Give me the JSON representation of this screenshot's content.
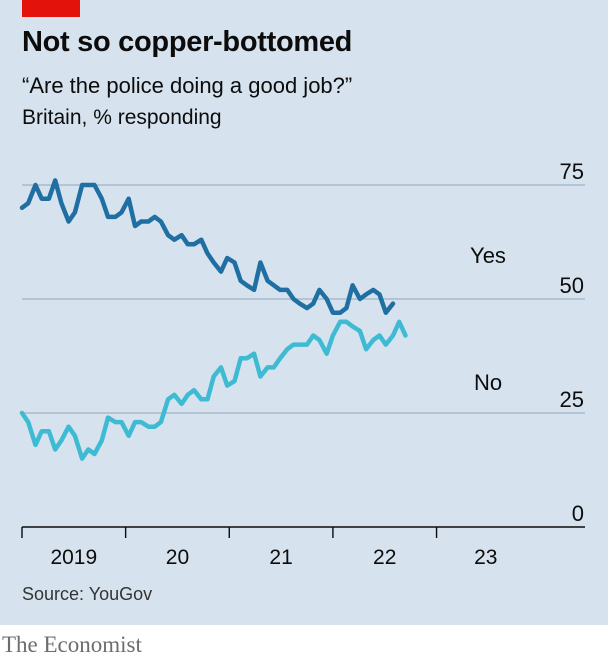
{
  "header": {
    "title": "Not so copper-bottomed",
    "subtitle": "“Are the police doing a good job?”",
    "unit": "Britain, % responding"
  },
  "footer": {
    "source": "Source: YouGov",
    "brand": "The Economist"
  },
  "colors": {
    "background": "#d6e3ee",
    "accent": "#e3120b",
    "yes": "#1f6fa3",
    "no": "#3ebbd3",
    "grid": "#9eb3c4"
  },
  "chart_data": {
    "type": "line",
    "title": "Not so copper-bottomed",
    "subtitle": "“Are the police doing a good job?”",
    "ylabel": "Britain, % responding",
    "ylim": [
      0,
      75
    ],
    "yticks": [
      0,
      25,
      50,
      75
    ],
    "xlim": [
      2019.0,
      2023.95
    ],
    "xtick_labels": [
      "2019",
      "20",
      "21",
      "22",
      "23"
    ],
    "x": [
      2019.0,
      2019.06,
      2019.13,
      2019.19,
      2019.26,
      2019.32,
      2019.38,
      2019.45,
      2019.51,
      2019.58,
      2019.64,
      2019.7,
      2019.77,
      2019.83,
      2019.9,
      2019.96,
      2020.03,
      2020.09,
      2020.15,
      2020.22,
      2020.28,
      2020.34,
      2020.41,
      2020.47,
      2020.54,
      2020.6,
      2020.66,
      2020.73,
      2020.79,
      2020.85,
      2020.92,
      2020.98,
      2021.05,
      2021.11,
      2021.17,
      2021.24,
      2021.3,
      2021.37,
      2021.43,
      2021.49,
      2021.56,
      2021.62,
      2021.68,
      2021.75,
      2021.81,
      2021.87,
      2021.94,
      2022.0,
      2022.07,
      2022.13,
      2022.19,
      2022.26,
      2022.32,
      2022.39,
      2022.45,
      2022.51,
      2022.58,
      2022.64,
      2022.7,
      2022.77,
      2022.83,
      2022.89,
      2022.96,
      2023.02,
      2023.09,
      2023.15,
      2023.21,
      2023.28,
      2023.34,
      2023.41,
      2023.47,
      2023.53,
      2023.6,
      2023.66
    ],
    "series": [
      {
        "name": "Yes",
        "values": [
          70,
          71,
          75,
          72,
          72,
          76,
          71,
          67,
          69,
          75,
          75,
          75,
          72,
          68,
          68,
          69,
          72,
          66,
          67,
          67,
          68,
          67,
          64,
          63,
          64,
          62,
          62,
          63,
          60,
          58,
          56,
          59,
          58,
          54,
          53,
          52,
          58,
          54,
          53,
          52,
          52,
          50,
          49,
          48,
          49,
          52,
          50,
          47,
          47,
          48,
          53,
          50,
          51,
          52,
          51,
          47,
          49,
          null,
          null,
          null,
          null,
          null,
          null,
          null,
          null,
          null,
          null,
          null,
          null,
          null,
          null,
          null,
          null,
          null
        ],
        "label": "Yes"
      },
      {
        "name": "No",
        "values": [
          25,
          23,
          18,
          21,
          21,
          17,
          19,
          22,
          20,
          15,
          17,
          16,
          19,
          24,
          23,
          23,
          20,
          23,
          23,
          22,
          22,
          23,
          28,
          29,
          27,
          29,
          30,
          28,
          28,
          33,
          35,
          31,
          32,
          37,
          37,
          38,
          33,
          35,
          35,
          37,
          39,
          40,
          40,
          40,
          42,
          41,
          38,
          42,
          45,
          45,
          44,
          43,
          39,
          41,
          42,
          40,
          42,
          45,
          42,
          null,
          null,
          null,
          null,
          null,
          null,
          null,
          null,
          null,
          null,
          null,
          null,
          null,
          null,
          null
        ],
        "label": "No"
      }
    ]
  }
}
